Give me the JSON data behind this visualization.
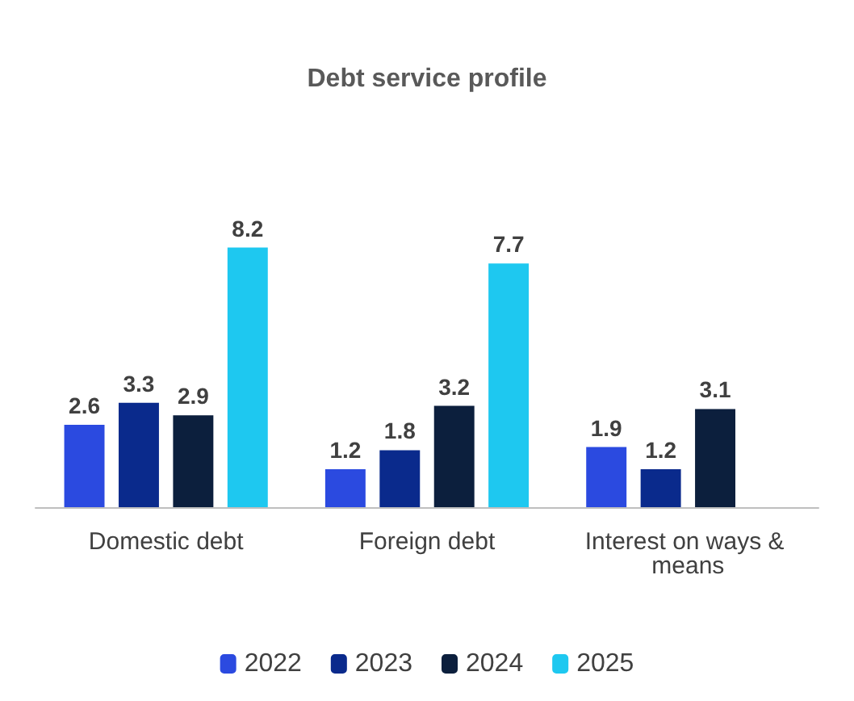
{
  "chart_data": {
    "type": "bar",
    "title": "Debt service profile",
    "categories": [
      "Domestic debt",
      "Foreign debt",
      "Interest on ways & means"
    ],
    "series": [
      {
        "name": "2022",
        "color": "#2b4ae0",
        "values": [
          2.6,
          1.2,
          1.9
        ]
      },
      {
        "name": "2023",
        "color": "#0a2a8c",
        "values": [
          3.3,
          1.8,
          1.2
        ]
      },
      {
        "name": "2024",
        "color": "#0c1f3d",
        "values": [
          2.9,
          3.2,
          3.1
        ]
      },
      {
        "name": "2025",
        "color": "#1ec8f0",
        "values": [
          8.2,
          7.7,
          null
        ]
      }
    ],
    "data_labels": true,
    "legend": "bottom"
  }
}
